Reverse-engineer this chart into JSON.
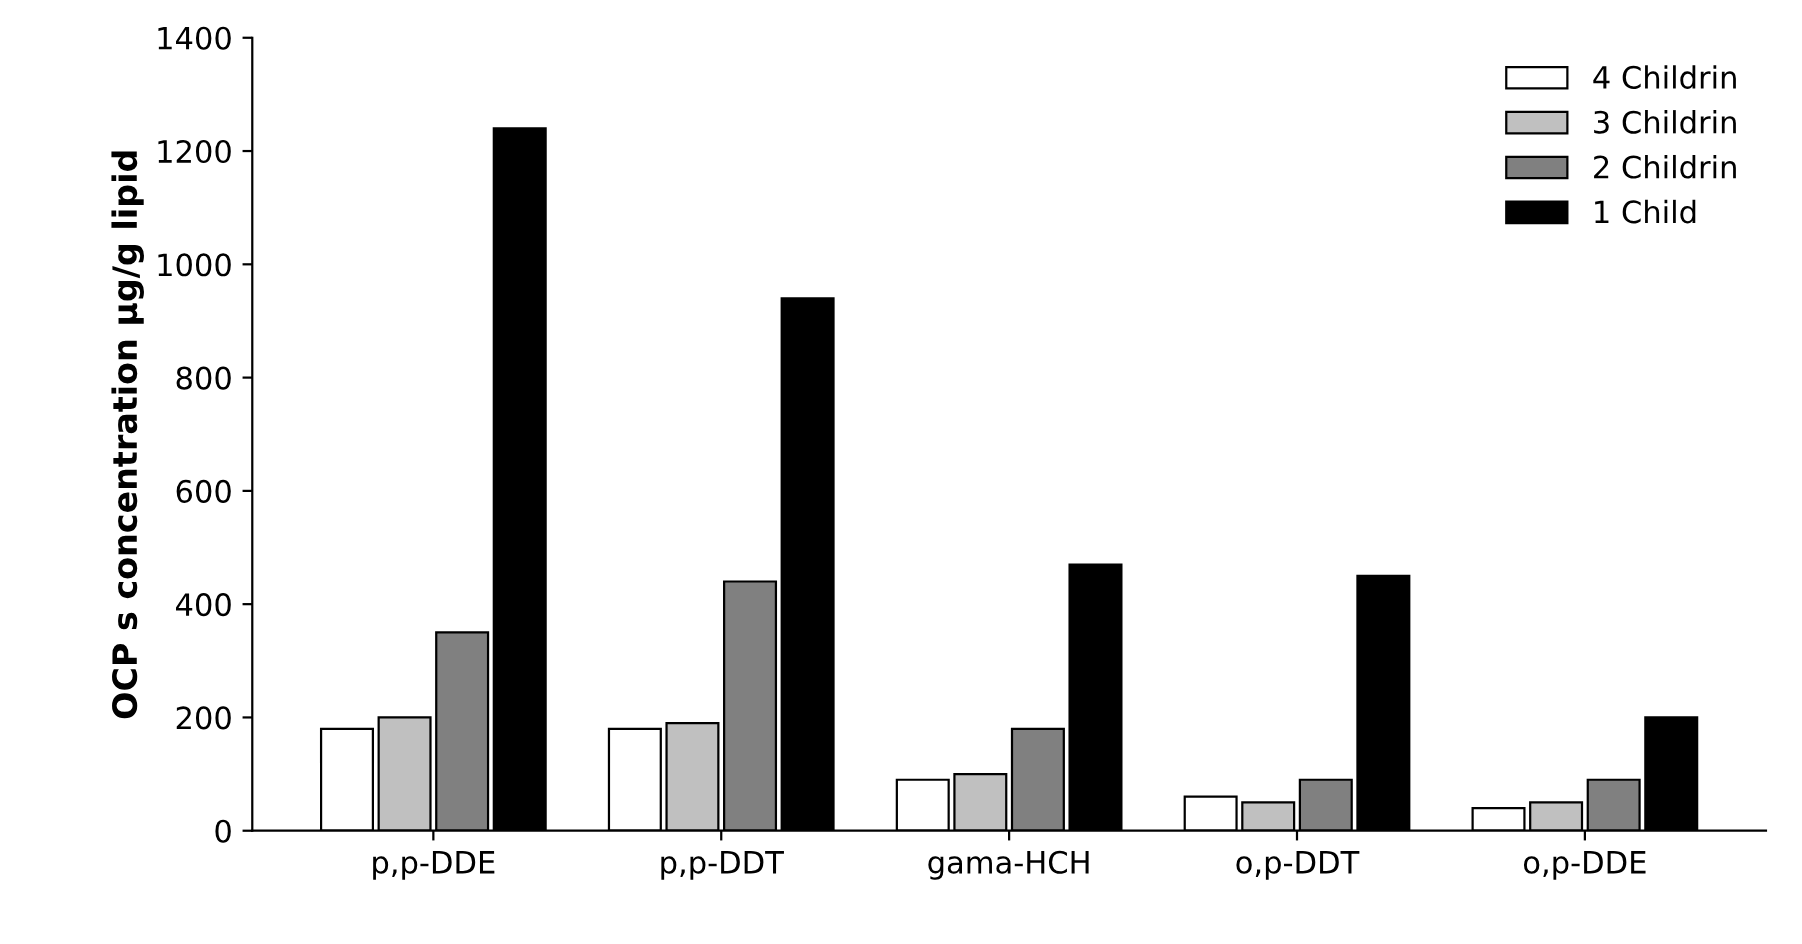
{
  "chart_data": {
    "type": "bar",
    "ylabel": "OCP s concentration µg/g lipid",
    "categories": [
      "p,p-DDE",
      "p,p-DDT",
      "gama-HCH",
      "o,p-DDT",
      "o,p-DDE"
    ],
    "series": [
      {
        "name": "4 Childrin",
        "color": "#ffffff",
        "values": [
          180,
          180,
          90,
          60,
          40
        ]
      },
      {
        "name": "3 Childrin",
        "color": "#c0c0c0",
        "values": [
          200,
          190,
          100,
          50,
          50
        ]
      },
      {
        "name": "2 Childrin",
        "color": "#808080",
        "values": [
          350,
          440,
          180,
          90,
          90
        ]
      },
      {
        "name": "1 Child",
        "color": "#000000",
        "values": [
          1240,
          940,
          470,
          450,
          200
        ]
      }
    ],
    "ylim": [
      0,
      1400
    ],
    "yticks": [
      0,
      200,
      400,
      600,
      800,
      1000,
      1200,
      1400
    ],
    "grid": false,
    "legend": "top right"
  }
}
